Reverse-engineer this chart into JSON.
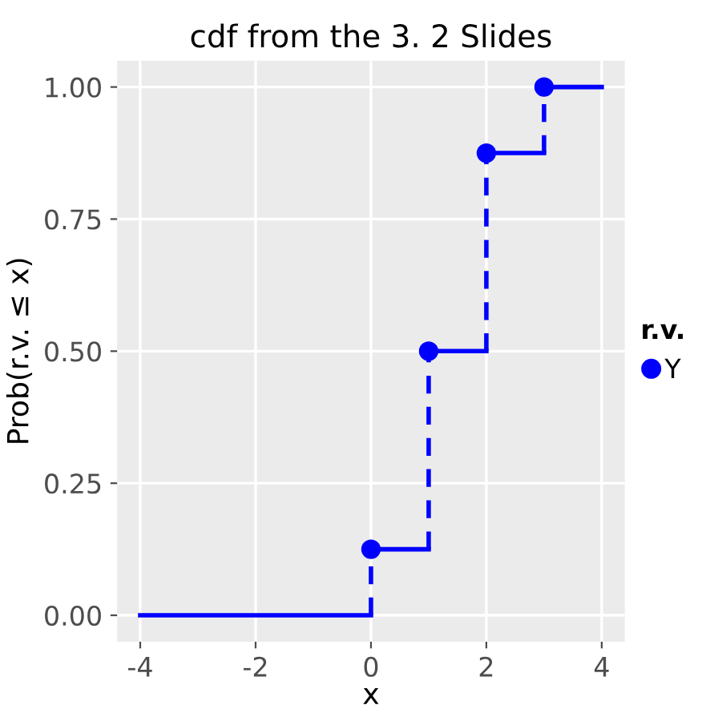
{
  "chart_data": {
    "type": "step",
    "title": "cdf from the 3. 2 Slides",
    "xlabel": "x",
    "ylabel": "Prob(r.v. ≤ x)",
    "legend_title": "r.v.",
    "series": [
      {
        "color": "#0000ff",
        "x": [
          -4,
          0,
          1,
          2,
          3,
          4
        ],
        "values": [
          0,
          0.125,
          0.5,
          0.875,
          1,
          1
        ],
        "line_style": "solid"
      },
      {
        "type": "scatter",
        "name": "Y",
        "color": "#0000ff",
        "x": [
          0,
          1,
          2,
          3
        ],
        "values": [
          0.125,
          0.5,
          0.875,
          1
        ],
        "marker": "circle"
      }
    ],
    "xlim": [
      -4.4,
      4.4
    ],
    "ylim": [
      -0.05,
      1.05
    ],
    "xticks": [
      -4,
      -2,
      0,
      2,
      4
    ],
    "yticks": [
      {
        "value": 0,
        "label": "0.00"
      },
      {
        "value": 0.25,
        "label": "0.25"
      },
      {
        "value": 0.5,
        "label": "0.50"
      },
      {
        "value": 0.75,
        "label": "0.75"
      },
      {
        "value": 1,
        "label": "1.00"
      }
    ],
    "grid": true,
    "legend": "right"
  }
}
